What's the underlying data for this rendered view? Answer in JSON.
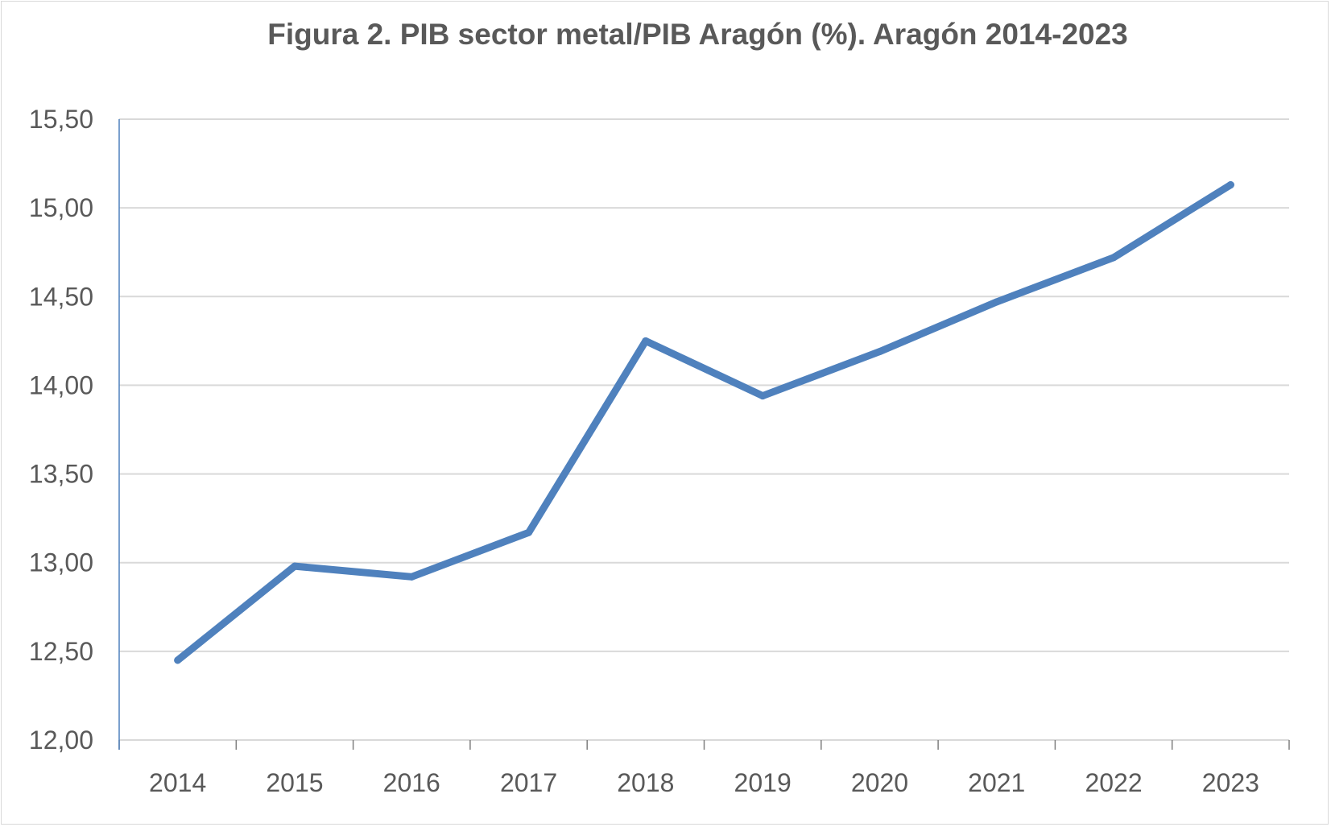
{
  "chart_data": {
    "type": "line",
    "title": "Figura  2. PIB sector metal/PIB Aragón (%). Aragón 2014-2023",
    "xlabel": "",
    "ylabel": "",
    "categories": [
      "2014",
      "2015",
      "2016",
      "2017",
      "2018",
      "2019",
      "2020",
      "2021",
      "2022",
      "2023"
    ],
    "series": [
      {
        "values": [
          12.45,
          12.98,
          12.92,
          13.17,
          14.25,
          13.94,
          14.19,
          14.47,
          14.72,
          15.13
        ]
      }
    ],
    "ylim": [
      12.0,
      15.5
    ],
    "yticks": [
      12.0,
      12.5,
      13.0,
      13.5,
      14.0,
      14.5,
      15.0,
      15.5
    ],
    "ytick_labels": [
      "12,00",
      "12,50",
      "13,00",
      "13,50",
      "14,00",
      "14,50",
      "15,00",
      "15,50"
    ],
    "grid": true,
    "legend": "none",
    "colors": {
      "line": "#4f81bd",
      "grid": "#d9d9d9",
      "axis": "#4f81bd",
      "text": "#595959"
    }
  }
}
